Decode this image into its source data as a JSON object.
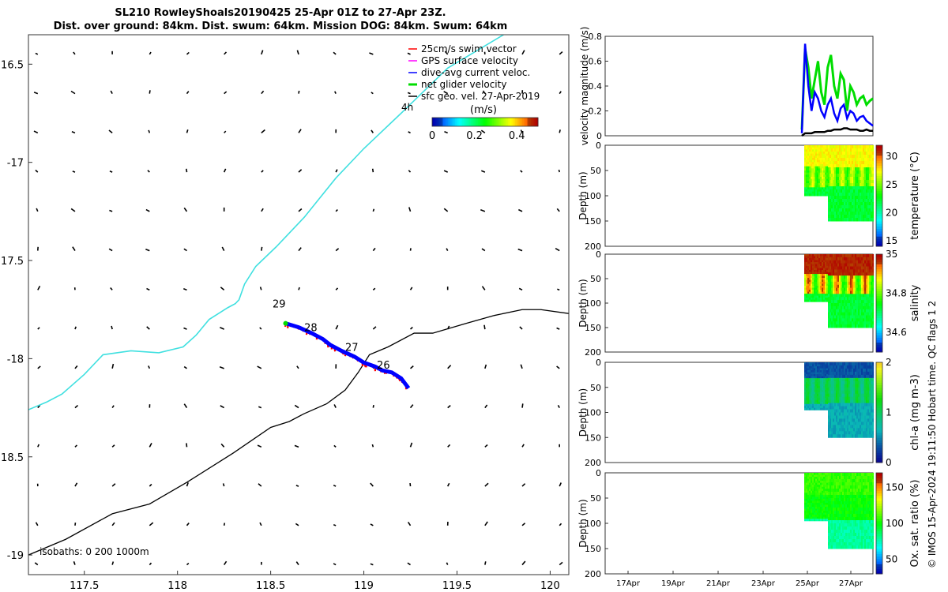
{
  "title": {
    "line1": "SL210 RowleyShoals20190425 25-Apr 01Z to 27-Apr 23Z.",
    "line2": "Dist. over ground: 84km. Dist. swum: 64km. Mission DOG: 84km. Swum: 64km"
  },
  "side_note": "© IMOS 15-Apr-2024 19:11:50 Hobart time. QC flags 1  2",
  "colors": {
    "coast": "#40e0e0",
    "isobath": "#000000",
    "swim": "#ff0000",
    "gps": "#ff00ff",
    "dive": "#0000ff",
    "net": "#00dd00",
    "geo": "#000000"
  },
  "chart_data": [
    {
      "type": "scatter",
      "xlim": [
        117.2,
        120.1
      ],
      "ylim": [
        -19.1,
        -16.35
      ],
      "xticks": [
        117.5,
        118,
        118.5,
        119,
        119.5,
        120
      ],
      "xtick_labels": [
        "117.5",
        "118",
        "118.5",
        "119",
        "119.5",
        "120"
      ],
      "yticks": [
        -19,
        -18.5,
        -18,
        -17.5,
        -17,
        -16.5
      ],
      "ytick_labels": [
        "-19",
        "18.5",
        "-18",
        "17.5",
        "-17",
        "16.5"
      ],
      "legend": {
        "placement": "top-right",
        "entries": [
          {
            "label": "25cm/s swim vector",
            "color": "#ff0000"
          },
          {
            "label": "GPS surface velocity",
            "color": "#ff00ff"
          },
          {
            "label": "dive-avg current veloc.",
            "color": "#0000ff"
          },
          {
            "label": "net glider velocity",
            "color": "#00dd00"
          },
          {
            "label": "sfc geo. vel. 27-Apr-2019",
            "color": "#000000"
          }
        ]
      },
      "interval_label": "4h",
      "colorbar": {
        "label": "(m/s)",
        "ticks": [
          "0",
          "0.2",
          "0.4"
        ],
        "range": [
          0,
          0.5
        ]
      },
      "isobath_note": "isobaths: 0   200  1000m",
      "coastline": [
        [
          117.2,
          -18.26
        ],
        [
          117.3,
          -18.22
        ],
        [
          117.38,
          -18.18
        ],
        [
          117.5,
          -18.08
        ],
        [
          117.6,
          -17.98
        ],
        [
          117.75,
          -17.96
        ],
        [
          117.9,
          -17.97
        ],
        [
          118.03,
          -17.94
        ],
        [
          118.1,
          -17.88
        ],
        [
          118.17,
          -17.8
        ],
        [
          118.22,
          -17.77
        ],
        [
          118.27,
          -17.74
        ],
        [
          118.31,
          -17.72
        ],
        [
          118.33,
          -17.7
        ],
        [
          118.36,
          -17.62
        ],
        [
          118.42,
          -17.53
        ],
        [
          118.53,
          -17.43
        ],
        [
          118.68,
          -17.28
        ],
        [
          118.85,
          -17.08
        ],
        [
          119.0,
          -16.93
        ],
        [
          119.2,
          -16.75
        ],
        [
          119.45,
          -16.52
        ],
        [
          119.75,
          -16.35
        ]
      ],
      "isobath_line": [
        [
          117.2,
          -19.0
        ],
        [
          117.4,
          -18.92
        ],
        [
          117.65,
          -18.79
        ],
        [
          117.85,
          -18.74
        ],
        [
          118.05,
          -18.63
        ],
        [
          118.3,
          -18.48
        ],
        [
          118.5,
          -18.35
        ],
        [
          118.6,
          -18.32
        ],
        [
          118.68,
          -18.28
        ],
        [
          118.8,
          -18.23
        ],
        [
          118.9,
          -18.16
        ],
        [
          118.97,
          -18.07
        ],
        [
          119.03,
          -17.98
        ],
        [
          119.13,
          -17.94
        ],
        [
          119.27,
          -17.87
        ],
        [
          119.37,
          -17.87
        ],
        [
          119.55,
          -17.82
        ],
        [
          119.7,
          -17.78
        ],
        [
          119.85,
          -17.75
        ],
        [
          119.95,
          -17.75
        ],
        [
          120.1,
          -17.77
        ]
      ],
      "track": [
        [
          118.58,
          -17.82
        ],
        [
          118.65,
          -17.84
        ],
        [
          118.72,
          -17.87
        ],
        [
          118.78,
          -17.9
        ],
        [
          118.82,
          -17.93
        ],
        [
          118.88,
          -17.96
        ],
        [
          118.95,
          -17.99
        ],
        [
          119.0,
          -18.02
        ],
        [
          119.06,
          -18.04
        ],
        [
          119.1,
          -18.06
        ],
        [
          119.15,
          -18.07
        ],
        [
          119.2,
          -18.1
        ],
        [
          119.24,
          -18.15
        ]
      ],
      "day_labels": [
        {
          "text": "29",
          "x": 118.51,
          "y": -17.74
        },
        {
          "text": "28",
          "x": 118.68,
          "y": -17.86
        },
        {
          "text": "27",
          "x": 118.9,
          "y": -17.96
        },
        {
          "text": "26",
          "x": 119.07,
          "y": -18.05
        }
      ]
    },
    {
      "type": "line",
      "ylabel": "velocity magnitude (m/s)",
      "ylim": [
        0,
        0.8
      ],
      "yticks": [
        "0",
        "0.2",
        "0.4",
        "0.6",
        "0.8"
      ],
      "series": [
        {
          "color": "#00dd00",
          "values": [
            0.05,
            0.7,
            0.55,
            0.3,
            0.45,
            0.6,
            0.35,
            0.25,
            0.55,
            0.65,
            0.4,
            0.3,
            0.5,
            0.45,
            0.2,
            0.4,
            0.35,
            0.25,
            0.3,
            0.32,
            0.25,
            0.28,
            0.3
          ]
        },
        {
          "color": "#0000ff",
          "values": [
            0.02,
            0.74,
            0.4,
            0.2,
            0.35,
            0.3,
            0.2,
            0.15,
            0.25,
            0.3,
            0.18,
            0.12,
            0.22,
            0.25,
            0.14,
            0.2,
            0.18,
            0.12,
            0.15,
            0.16,
            0.12,
            0.1,
            0.08
          ]
        },
        {
          "color": "#000000",
          "values": [
            0.0,
            0.02,
            0.02,
            0.02,
            0.03,
            0.03,
            0.03,
            0.03,
            0.04,
            0.04,
            0.05,
            0.05,
            0.05,
            0.06,
            0.06,
            0.05,
            0.05,
            0.05,
            0.04,
            0.04,
            0.05,
            0.04,
            0.04
          ]
        }
      ]
    },
    {
      "type": "heatmap",
      "ylabel": "Depth (m)",
      "cblabel": "temperature (°C)",
      "ylim": [
        200,
        0
      ],
      "yticks": [
        "0",
        "50",
        "100",
        "150",
        "200"
      ],
      "cbticks": [
        "15",
        "20",
        "25",
        "30"
      ],
      "cbrange": [
        14,
        32
      ]
    },
    {
      "type": "heatmap",
      "ylabel": "Depth (m)",
      "cblabel": "salinity",
      "ylim": [
        200,
        0
      ],
      "yticks": [
        "0",
        "50",
        "100",
        "150",
        "200"
      ],
      "cbticks": [
        "34.6",
        "34.8",
        "35"
      ],
      "cbrange": [
        34.5,
        35.0
      ]
    },
    {
      "type": "heatmap",
      "ylabel": "Depth (m)",
      "cblabel": "chl-a (mg m-3)",
      "ylim": [
        200,
        0
      ],
      "yticks": [
        "0",
        "50",
        "100",
        "150",
        "200"
      ],
      "cbticks": [
        "0",
        "1",
        "2"
      ],
      "cbrange": [
        0,
        2
      ]
    },
    {
      "type": "heatmap",
      "ylabel": "Depth (m)",
      "cblabel": "Ox. sat. ratio (%)",
      "ylim": [
        200,
        0
      ],
      "yticks": [
        "0",
        "50",
        "100",
        "150",
        "200"
      ],
      "cbticks": [
        "50",
        "100",
        "150"
      ],
      "cbrange": [
        30,
        170
      ],
      "xtick_labels": [
        "17Apr",
        "19Apr",
        "21Apr",
        "23Apr",
        "25Apr",
        "27Apr"
      ]
    }
  ]
}
